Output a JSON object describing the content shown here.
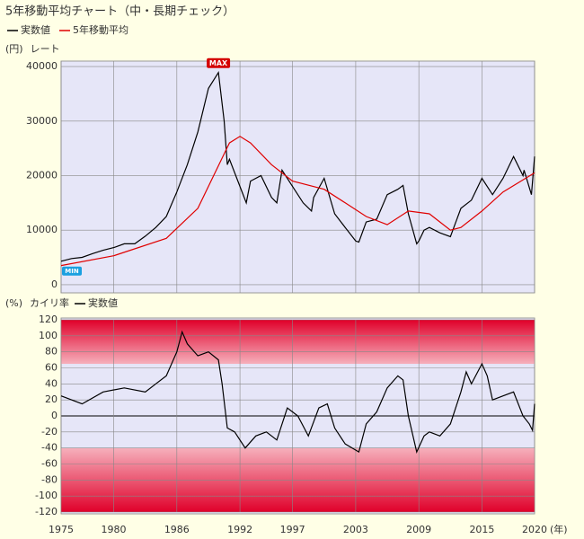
{
  "chart_data": [
    {
      "type": "line",
      "title": "5年移動平均チャート（中・長期チェック）",
      "y_unit": "(円)",
      "y_label": "レート",
      "xlim": [
        1975,
        2020
      ],
      "xticks": [
        1975,
        1980,
        1986,
        1992,
        1997,
        2003,
        2009,
        2015,
        2020
      ],
      "ylim": [
        -1500,
        41000
      ],
      "yticks": [
        0,
        10000,
        20000,
        30000,
        40000
      ],
      "grid": true,
      "max_label": "MAX",
      "min_label": "MIN",
      "series": [
        {
          "name": "実数値",
          "color": "#000000",
          "x": [
            1975,
            1976,
            1977,
            1978,
            1979,
            1980,
            1981,
            1982,
            1983,
            1984,
            1985,
            1986,
            1987,
            1988,
            1989,
            1989.95,
            1990.5,
            1990.8,
            1991,
            1992,
            1992.6,
            1993,
            1994,
            1995,
            1995.5,
            1996,
            1997,
            1998,
            1998.8,
            1999,
            2000,
            2001,
            2002,
            2003,
            2003.3,
            2004,
            2005,
            2006,
            2007,
            2007.5,
            2008,
            2008.8,
            2009,
            2009.5,
            2010,
            2011,
            2012,
            2013,
            2014,
            2015,
            2016,
            2017,
            2018,
            2018.9,
            2019,
            2019.7,
            2020
          ],
          "values": [
            4300,
            4800,
            5000,
            5700,
            6300,
            6800,
            7500,
            7500,
            8900,
            10500,
            12500,
            17000,
            22000,
            28000,
            36000,
            38900,
            30000,
            22000,
            23000,
            18000,
            15000,
            19000,
            20000,
            16000,
            15000,
            21000,
            18000,
            15000,
            13500,
            16000,
            19500,
            13000,
            10500,
            8000,
            7800,
            11500,
            12000,
            16500,
            17500,
            18200,
            13000,
            7500,
            8000,
            10000,
            10500,
            9500,
            8800,
            14000,
            15500,
            19500,
            16500,
            19500,
            23500,
            20000,
            21000,
            16500,
            23500
          ]
        },
        {
          "name": "5年移動平均",
          "color": "#e00000",
          "x": [
            1975,
            1980,
            1985,
            1988,
            1990,
            1991,
            1992,
            1993,
            1995,
            1997,
            2000,
            2002,
            2004,
            2006,
            2008,
            2010,
            2012,
            2013,
            2015,
            2017,
            2020
          ],
          "values": [
            3500,
            5300,
            8500,
            14000,
            22000,
            26000,
            27200,
            26000,
            22000,
            19000,
            17500,
            15000,
            12500,
            11000,
            13500,
            13000,
            10000,
            10500,
            13500,
            17000,
            20500
          ]
        }
      ]
    },
    {
      "type": "line",
      "y_unit": "(%)",
      "y_label": "カイリ率",
      "x_unit": "(年)",
      "xlim": [
        1975,
        2020
      ],
      "xticks": [
        1975,
        1980,
        1986,
        1992,
        1997,
        2003,
        2009,
        2015,
        2020
      ],
      "ylim": [
        -120,
        120
      ],
      "yticks": [
        120,
        100,
        80,
        60,
        40,
        20,
        0,
        -20,
        -40,
        -60,
        -80,
        -100,
        -120
      ],
      "grid": true,
      "bands": [
        [
          65,
          120
        ],
        [
          -120,
          -40
        ]
      ],
      "series": [
        {
          "name": "実数値",
          "color": "#000000",
          "x": [
            1975,
            1977,
            1979,
            1981,
            1983,
            1984,
            1985,
            1986,
            1986.5,
            1987,
            1988,
            1989,
            1989.95,
            1990.3,
            1990.8,
            1991.5,
            1992.5,
            1993.5,
            1994.5,
            1995.5,
            1996.5,
            1997.5,
            1998.5,
            1999.5,
            2000.3,
            2001,
            2002,
            2003.3,
            2004,
            2005,
            2006,
            2007,
            2007.5,
            2008,
            2008.8,
            2009.5,
            2010,
            2011,
            2012,
            2013,
            2013.5,
            2014,
            2015,
            2015.5,
            2016,
            2017,
            2018,
            2018.9,
            2019.5,
            2019.8,
            2020
          ],
          "values": [
            25,
            15,
            30,
            35,
            30,
            40,
            50,
            80,
            105,
            90,
            75,
            80,
            70,
            40,
            -15,
            -20,
            -40,
            -25,
            -20,
            -30,
            10,
            0,
            -25,
            10,
            15,
            -15,
            -35,
            -45,
            -10,
            5,
            35,
            50,
            45,
            0,
            -45,
            -25,
            -20,
            -25,
            -10,
            30,
            55,
            40,
            65,
            50,
            20,
            25,
            30,
            0,
            -10,
            -18,
            15
          ]
        }
      ]
    }
  ]
}
